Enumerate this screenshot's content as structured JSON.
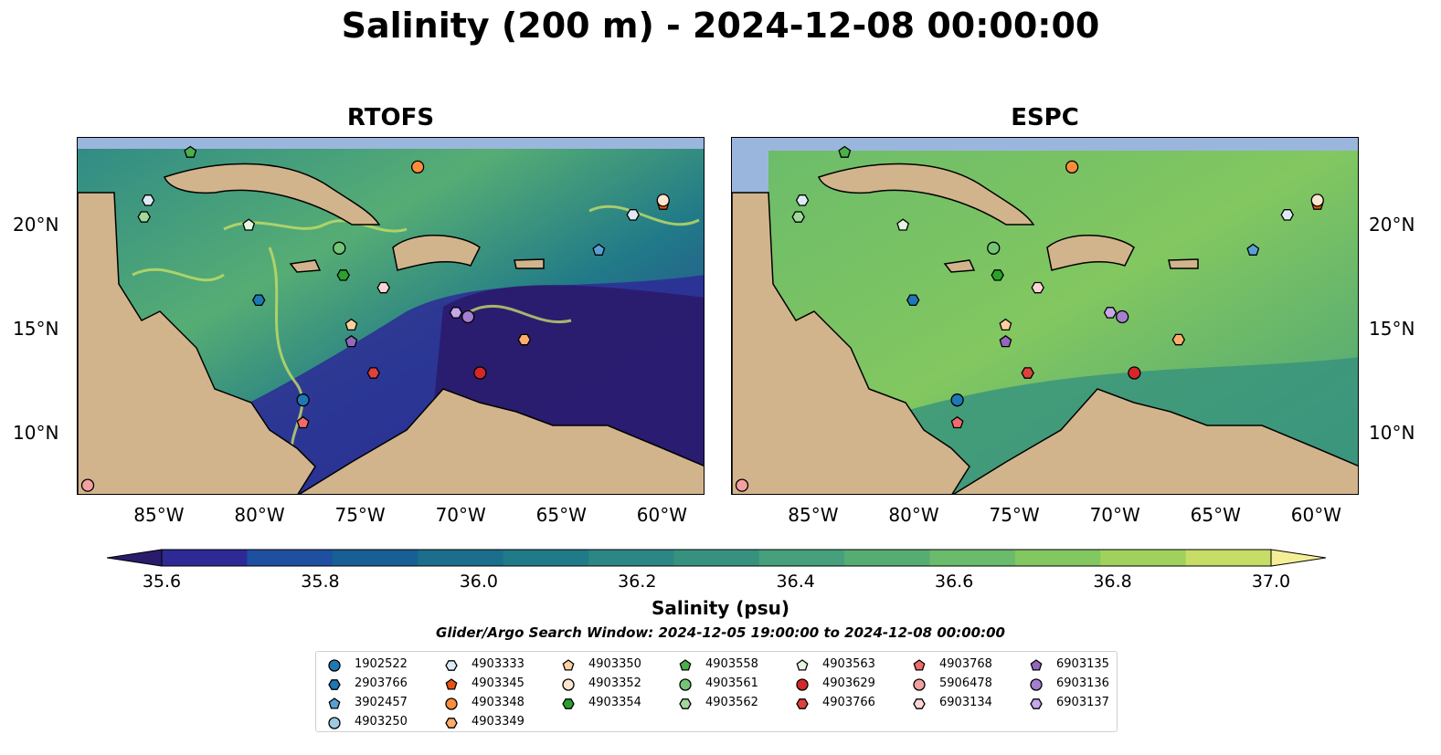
{
  "title": "Salinity (200 m) - 2024-12-08 00:00:00",
  "panels": [
    {
      "title": "RTOFS"
    },
    {
      "title": "ESPC"
    }
  ],
  "longitude_labels": [
    "85°W",
    "80°W",
    "75°W",
    "70°W",
    "65°W",
    "60°W"
  ],
  "latitude_labels": [
    "20°N",
    "15°N",
    "10°N"
  ],
  "colorbar": {
    "label": "Salinity (psu)",
    "ticks": [
      "35.6",
      "35.8",
      "36.0",
      "36.2",
      "36.4",
      "36.6",
      "36.8",
      "37.0"
    ],
    "range": [
      35.6,
      37.0
    ],
    "colors": [
      "#2a1b6b",
      "#2d2a96",
      "#1e4fa0",
      "#175f95",
      "#1b6e8c",
      "#217a88",
      "#2b8684",
      "#36927e",
      "#45a07b",
      "#56ad74",
      "#6abb6b",
      "#82c760",
      "#a0d15d",
      "#c6dd66",
      "#f4ef97"
    ]
  },
  "search_window": "Glider/Argo Search Window: 2024-12-05 19:00:00 to 2024-12-08 00:00:00",
  "legend": [
    {
      "id": "1902522",
      "color": "#1f77b4",
      "marker": "circle"
    },
    {
      "id": "2903766",
      "color": "#1f77b4",
      "marker": "hexagon"
    },
    {
      "id": "3902457",
      "color": "#5a9fd4",
      "marker": "pentagon"
    },
    {
      "id": "4903250",
      "color": "#9ecae1",
      "marker": "circle"
    },
    {
      "id": "4903333",
      "color": "#deebf7",
      "marker": "hexagon"
    },
    {
      "id": "4903345",
      "color": "#e6550d",
      "marker": "pentagon"
    },
    {
      "id": "4903348",
      "color": "#fd8d3c",
      "marker": "circle"
    },
    {
      "id": "4903349",
      "color": "#fdae6b",
      "marker": "hexagon"
    },
    {
      "id": "4903350",
      "color": "#fdd0a2",
      "marker": "pentagon"
    },
    {
      "id": "4903352",
      "color": "#fee6ce",
      "marker": "circle"
    },
    {
      "id": "4903354",
      "color": "#2ca02c",
      "marker": "hexagon"
    },
    {
      "id": "4903558",
      "color": "#4bb04b",
      "marker": "pentagon"
    },
    {
      "id": "4903561",
      "color": "#74c476",
      "marker": "circle"
    },
    {
      "id": "4903562",
      "color": "#a1d99b",
      "marker": "hexagon"
    },
    {
      "id": "4903563",
      "color": "#e5f5e0",
      "marker": "pentagon"
    },
    {
      "id": "4903629",
      "color": "#d62728",
      "marker": "circle"
    },
    {
      "id": "4903766",
      "color": "#e0413f",
      "marker": "hexagon"
    },
    {
      "id": "4903768",
      "color": "#f06b6b",
      "marker": "pentagon"
    },
    {
      "id": "5906478",
      "color": "#f4a0a0",
      "marker": "circle"
    },
    {
      "id": "6903134",
      "color": "#fcd5d5",
      "marker": "hexagon"
    },
    {
      "id": "6903135",
      "color": "#9467bd",
      "marker": "pentagon"
    },
    {
      "id": "6903136",
      "color": "#a47fcf",
      "marker": "circle"
    },
    {
      "id": "6903137",
      "color": "#c5a8e8",
      "marker": "hexagon"
    }
  ],
  "floats": [
    {
      "id": "4903558",
      "lon": -83.5,
      "lat": 23.5
    },
    {
      "id": "4903348",
      "lon": -72.2,
      "lat": 22.8
    },
    {
      "id": "4903333",
      "lon": -85.6,
      "lat": 21.2
    },
    {
      "id": "4903562",
      "lon": -85.8,
      "lat": 20.4
    },
    {
      "id": "4903563",
      "lon": -80.6,
      "lat": 20.0
    },
    {
      "id": "4903345",
      "lon": -60.0,
      "lat": 21.0
    },
    {
      "id": "4903352",
      "lon": -60.0,
      "lat": 21.2
    },
    {
      "id": "4903333",
      "lon": -61.5,
      "lat": 20.5
    },
    {
      "id": "3902457",
      "lon": -63.2,
      "lat": 18.8
    },
    {
      "id": "4903561",
      "lon": -76.1,
      "lat": 18.9
    },
    {
      "id": "4903354",
      "lon": -75.9,
      "lat": 17.6
    },
    {
      "id": "2903766",
      "lon": -80.1,
      "lat": 16.4
    },
    {
      "id": "6903134",
      "lon": -73.9,
      "lat": 17.0
    },
    {
      "id": "6903137",
      "lon": -70.3,
      "lat": 15.8
    },
    {
      "id": "6903136",
      "lon": -69.7,
      "lat": 15.6
    },
    {
      "id": "4903350",
      "lon": -75.5,
      "lat": 15.2
    },
    {
      "id": "6903135",
      "lon": -75.5,
      "lat": 14.4
    },
    {
      "id": "4903349",
      "lon": -66.9,
      "lat": 14.5
    },
    {
      "id": "4903766",
      "lon": -74.4,
      "lat": 12.9
    },
    {
      "id": "4903629",
      "lon": -69.1,
      "lat": 12.9
    },
    {
      "id": "1902522",
      "lon": -77.9,
      "lat": 11.6
    },
    {
      "id": "4903768",
      "lon": -77.9,
      "lat": 10.5
    },
    {
      "id": "5906478",
      "lon": -88.6,
      "lat": 7.5
    }
  ]
}
